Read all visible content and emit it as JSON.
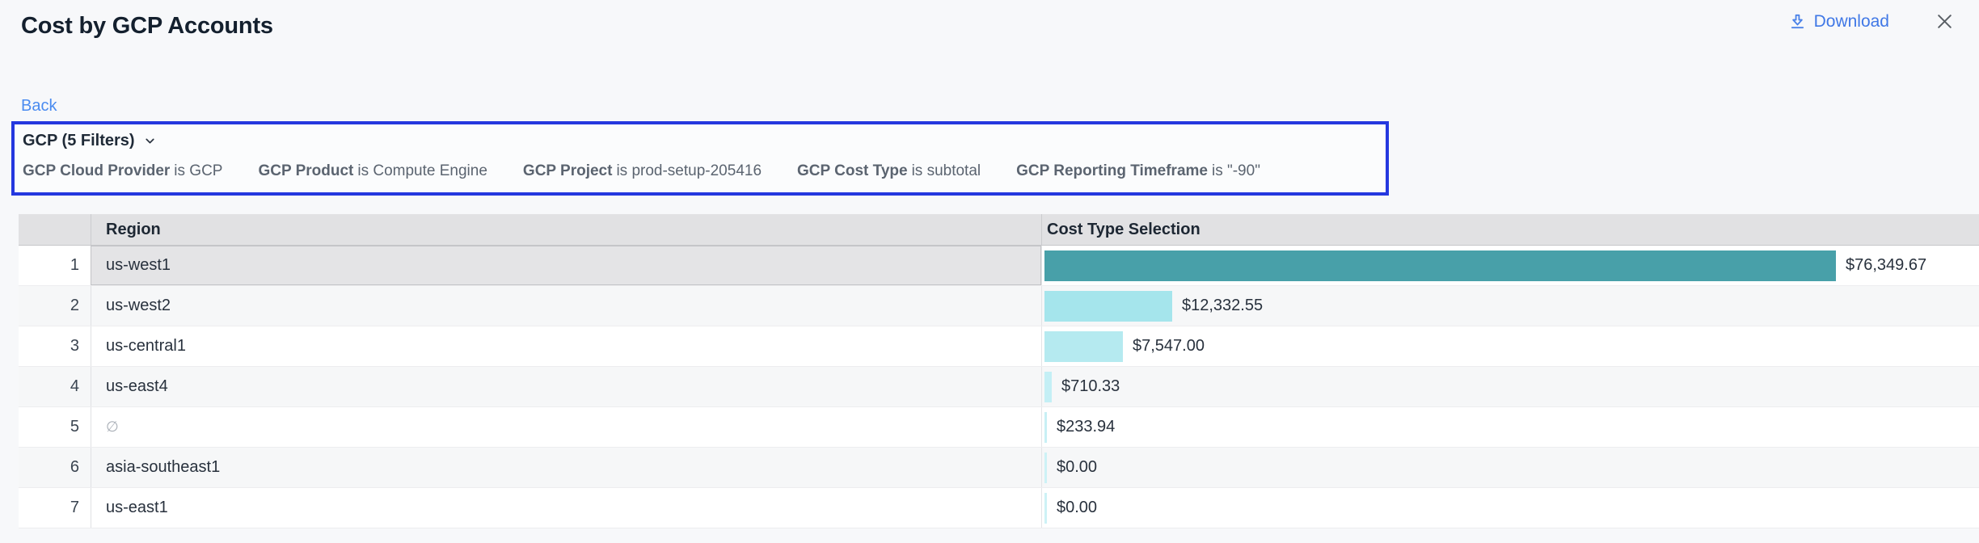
{
  "header": {
    "title": "Cost by GCP Accounts",
    "download_label": "Download"
  },
  "nav": {
    "back_label": "Back"
  },
  "filter_bar": {
    "summary": "GCP (5 Filters)",
    "filters": [
      {
        "name": "GCP Cloud Provider",
        "condition": "is GCP"
      },
      {
        "name": "GCP Product",
        "condition": "is Compute Engine"
      },
      {
        "name": "GCP Project",
        "condition": "is prod-setup-205416"
      },
      {
        "name": "GCP Cost Type",
        "condition": "is subtotal"
      },
      {
        "name": "GCP Reporting Timeframe",
        "condition": "is \"-90\""
      }
    ]
  },
  "table": {
    "columns": {
      "region": "Region",
      "cost": "Cost Type Selection"
    },
    "rows": [
      {
        "num": "1",
        "region": "us-west1",
        "region_null": false,
        "value": 76349.67,
        "value_label": "$76,349.67",
        "bar_color": "#48a0a9",
        "selected": true
      },
      {
        "num": "2",
        "region": "us-west2",
        "region_null": false,
        "value": 12332.55,
        "value_label": "$12,332.55",
        "bar_color": "#a5e5ec",
        "selected": false
      },
      {
        "num": "3",
        "region": "us-central1",
        "region_null": false,
        "value": 7547.0,
        "value_label": "$7,547.00",
        "bar_color": "#b5eaf0",
        "selected": false
      },
      {
        "num": "4",
        "region": "us-east4",
        "region_null": false,
        "value": 710.33,
        "value_label": "$710.33",
        "bar_color": "#c4eff5",
        "selected": false
      },
      {
        "num": "5",
        "region": "∅",
        "region_null": true,
        "value": 233.94,
        "value_label": "$233.94",
        "bar_color": "#c8f0f5",
        "selected": false
      },
      {
        "num": "6",
        "region": "asia-southeast1",
        "region_null": false,
        "value": 0,
        "value_label": "$0.00",
        "bar_color": "#cdf2f6",
        "selected": false
      },
      {
        "num": "7",
        "region": "us-east1",
        "region_null": false,
        "value": 0,
        "value_label": "$0.00",
        "bar_color": "#cdf2f6",
        "selected": false
      }
    ]
  },
  "colors": {
    "filter_box_border": "#2538df",
    "link_blue": "#4a8bf0",
    "download_blue": "#4078e6",
    "max_bar_teal": "#48a0a9"
  }
}
